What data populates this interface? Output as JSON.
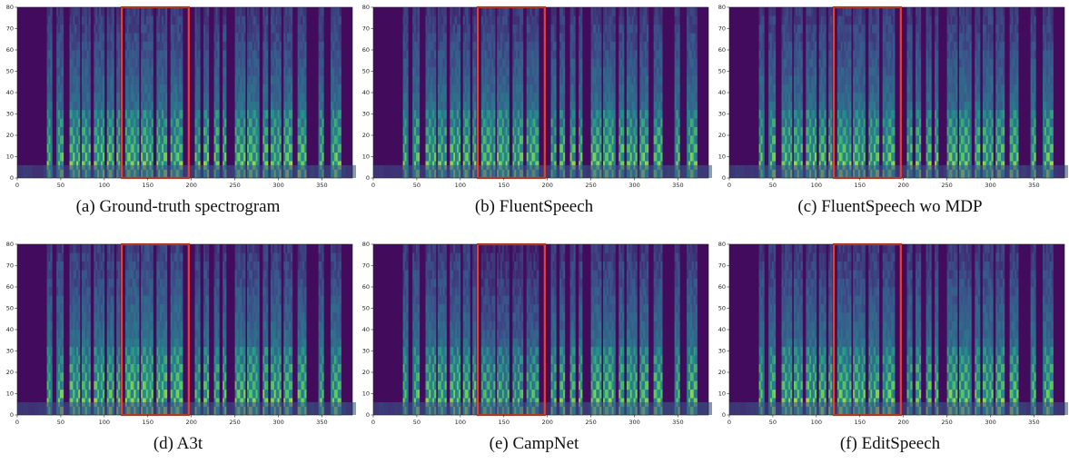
{
  "figure": {
    "panels": [
      {
        "caption": "(a) Ground-truth spectrogram",
        "variant": 0
      },
      {
        "caption": "(b) FluentSpeech",
        "variant": 1
      },
      {
        "caption": "(c) FluentSpeech wo MDP",
        "variant": 2
      },
      {
        "caption": "(d) A3t",
        "variant": 3
      },
      {
        "caption": "(e) CampNet",
        "variant": 4
      },
      {
        "caption": "(f) EditSpeech",
        "variant": 5
      }
    ]
  },
  "chart_data": {
    "type": "heatmap",
    "description_of_axes": "mel spectrogram: x = frames, y = mel bins",
    "xlim": [
      0,
      385
    ],
    "ylim": [
      0,
      80
    ],
    "x_ticks": [
      0,
      50,
      100,
      150,
      200,
      250,
      300,
      350
    ],
    "y_ticks": [
      0,
      10,
      20,
      30,
      40,
      50,
      60,
      70,
      80
    ],
    "highlight_region": {
      "x_start": 120,
      "x_end": 197,
      "y_start": 0,
      "y_end": 80,
      "color": "#e8412c"
    },
    "colormap": "viridis",
    "colors": {
      "low": "#440154",
      "mid": "#21918c",
      "high": "#fde725"
    }
  }
}
